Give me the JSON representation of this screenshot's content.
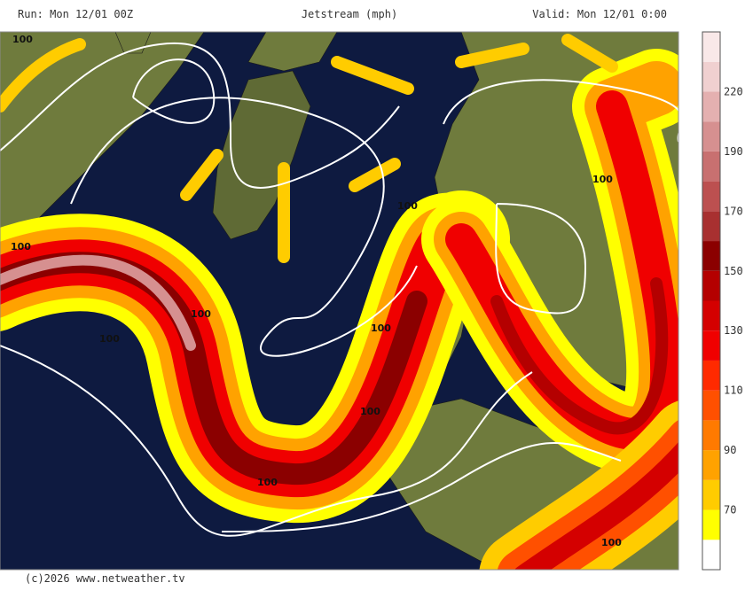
{
  "header": {
    "run": "Run: Mon 12/01 00Z",
    "title": "Jetstream (mph)",
    "valid": "Valid: Mon 12/01 0:00"
  },
  "footer": "(c)2026 www.netweather.tv",
  "colorbar": {
    "colors": [
      "#ffffff",
      "#ffff00",
      "#ffcc00",
      "#ffa200",
      "#ff7a00",
      "#ff5000",
      "#ff2a00",
      "#f00000",
      "#d40000",
      "#b40000",
      "#8b0000",
      "#a83030",
      "#bc5050",
      "#c87070",
      "#d69090",
      "#e4b0b0",
      "#f0d0d0",
      "#f9e8e8"
    ],
    "ticks": [
      "70",
      "90",
      "110",
      "130",
      "150",
      "170",
      "190",
      "220"
    ]
  },
  "contour_labels": [
    "100",
    "100",
    "100",
    "100",
    "100",
    "100",
    "100",
    "100",
    "100",
    "100"
  ]
}
